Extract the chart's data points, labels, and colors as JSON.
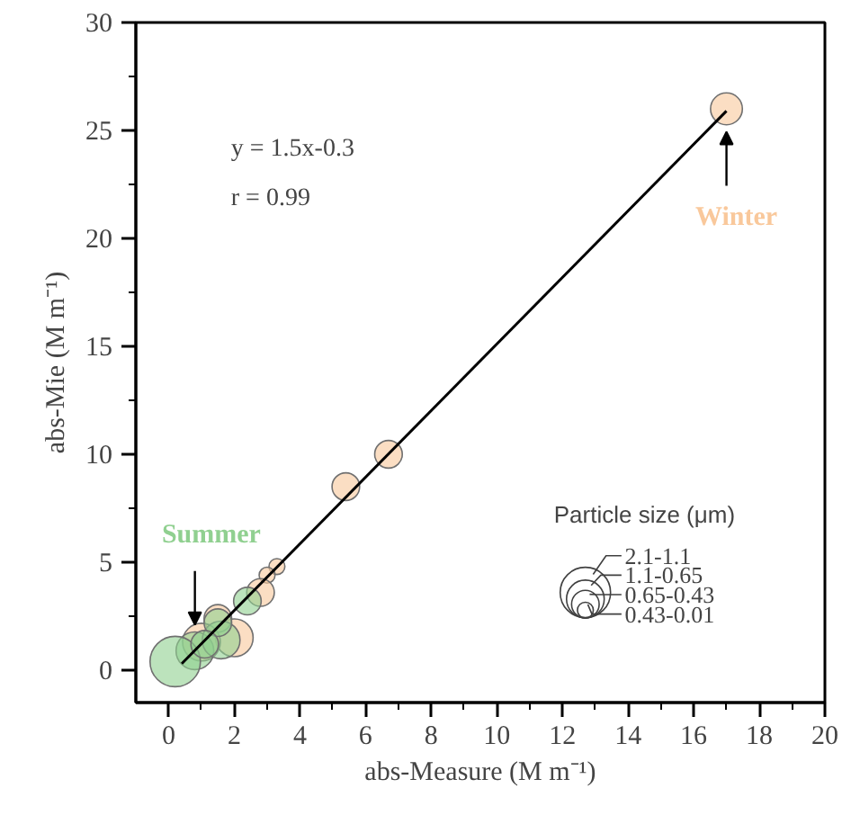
{
  "chart_data": {
    "type": "bubble",
    "xlabel": "abs-Measure (M m⁻¹)",
    "ylabel": "abs-Mie (M m⁻¹)",
    "xlim": [
      -1,
      20
    ],
    "xticks": [
      0,
      2,
      4,
      6,
      8,
      10,
      12,
      14,
      16,
      18,
      20
    ],
    "ylim": [
      -1.5,
      30
    ],
    "yticks": [
      0,
      5,
      10,
      15,
      20,
      25,
      30
    ],
    "grid": false,
    "legend_title": "Particle size (μm)",
    "size_legend": [
      {
        "value": 1,
        "label": "2.1-1.1"
      },
      {
        "value": 0.56,
        "label": "1.1-0.65"
      },
      {
        "value": 0.3,
        "label": "0.65-0.43"
      },
      {
        "value": 0.1,
        "label": "0.43-0.01"
      }
    ],
    "annotations": [
      "y = 1.5x-0.3",
      "r = 0.99"
    ],
    "series": [
      {
        "name": "Winter",
        "color": "#f9c89b",
        "x": [
          17.0,
          6.7,
          5.4,
          3.3,
          3.0,
          2.8,
          2.0,
          1.5,
          1.0
        ],
        "values": [
          26.0,
          10.0,
          8.5,
          4.8,
          4.4,
          3.6,
          1.5,
          2.4,
          1.3
        ],
        "sizes": [
          0.4,
          0.3,
          0.3,
          0.1,
          0.1,
          0.3,
          0.56,
          0.3,
          0.56
        ]
      },
      {
        "name": "Summer",
        "color": "#90d090",
        "x": [
          0.8,
          0.2,
          1.6,
          1.5,
          2.4,
          1.1
        ],
        "values": [
          0.9,
          0.4,
          1.4,
          2.2,
          3.2,
          1.2
        ],
        "sizes": [
          0.56,
          1.0,
          0.56,
          0.3,
          0.3,
          0.3
        ]
      },
      {
        "type": "line",
        "color": "#000000",
        "x": [
          0.4,
          17.0
        ],
        "values": [
          0.3,
          25.9
        ]
      }
    ]
  }
}
